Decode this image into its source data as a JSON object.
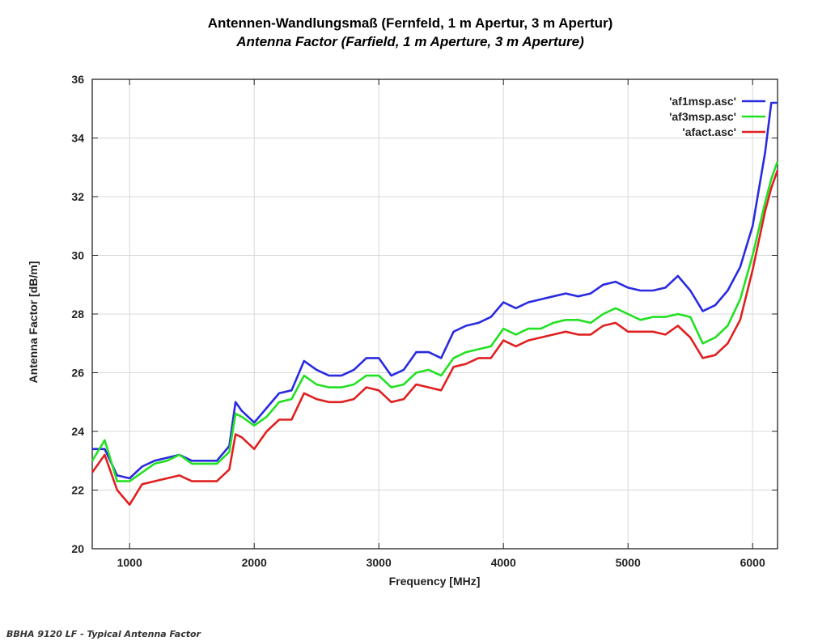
{
  "caption": "BBHA 9120 LF - Typical Antenna Factor",
  "chart_data": {
    "type": "line",
    "title": "Antennen-Wandlungsmaß (Fernfeld, 1 m Apertur, 3 m Apertur)",
    "subtitle": "Antenna Factor (Farfield, 1 m Aperture, 3 m Aperture)",
    "xlabel": "Frequency [MHz]",
    "ylabel": "Antenna Factor [dB/m]",
    "xlim": [
      700,
      6200
    ],
    "ylim": [
      20,
      36
    ],
    "xticks": [
      1000,
      2000,
      3000,
      4000,
      5000,
      6000
    ],
    "yticks": [
      20,
      22,
      24,
      26,
      28,
      30,
      32,
      34,
      36
    ],
    "grid": true,
    "legend_position": "top-right",
    "x": [
      700,
      800,
      900,
      1000,
      1100,
      1200,
      1300,
      1400,
      1500,
      1600,
      1700,
      1800,
      1850,
      1900,
      2000,
      2100,
      2200,
      2300,
      2400,
      2500,
      2600,
      2700,
      2800,
      2900,
      3000,
      3100,
      3200,
      3300,
      3400,
      3500,
      3600,
      3700,
      3800,
      3900,
      4000,
      4100,
      4200,
      4300,
      4400,
      4500,
      4600,
      4700,
      4800,
      4900,
      5000,
      5100,
      5200,
      5300,
      5400,
      5500,
      5600,
      5700,
      5800,
      5900,
      6000,
      6100,
      6150,
      6200
    ],
    "series": [
      {
        "name": "'af1msp.asc'",
        "color": "#2a2ae0",
        "values": [
          23.4,
          23.4,
          22.5,
          22.4,
          22.8,
          23.0,
          23.1,
          23.2,
          23.0,
          23.0,
          23.0,
          23.5,
          25.0,
          24.7,
          24.3,
          24.8,
          25.3,
          25.4,
          26.4,
          26.1,
          25.9,
          25.9,
          26.1,
          26.5,
          26.5,
          25.9,
          26.1,
          26.7,
          26.7,
          26.5,
          27.4,
          27.6,
          27.7,
          27.9,
          28.4,
          28.2,
          28.4,
          28.5,
          28.6,
          28.7,
          28.6,
          28.7,
          29.0,
          29.1,
          28.9,
          28.8,
          28.8,
          28.9,
          29.3,
          28.8,
          28.1,
          28.3,
          28.8,
          29.6,
          31.0,
          33.5,
          35.2,
          35.2
        ]
      },
      {
        "name": "'af3msp.asc'",
        "color": "#22e022",
        "values": [
          23.0,
          23.7,
          22.3,
          22.3,
          22.6,
          22.9,
          23.0,
          23.2,
          22.9,
          22.9,
          22.9,
          23.3,
          24.6,
          24.5,
          24.2,
          24.5,
          25.0,
          25.1,
          25.9,
          25.6,
          25.5,
          25.5,
          25.6,
          25.9,
          25.9,
          25.5,
          25.6,
          26.0,
          26.1,
          25.9,
          26.5,
          26.7,
          26.8,
          26.9,
          27.5,
          27.3,
          27.5,
          27.5,
          27.7,
          27.8,
          27.8,
          27.7,
          28.0,
          28.2,
          28.0,
          27.8,
          27.9,
          27.9,
          28.0,
          27.9,
          27.0,
          27.2,
          27.6,
          28.5,
          30.0,
          31.8,
          32.6,
          33.2
        ]
      },
      {
        "name": "'afact.asc'",
        "color": "#e02020",
        "values": [
          22.6,
          23.2,
          22.0,
          21.5,
          22.2,
          22.3,
          22.4,
          22.5,
          22.3,
          22.3,
          22.3,
          22.7,
          23.9,
          23.8,
          23.4,
          24.0,
          24.4,
          24.4,
          25.3,
          25.1,
          25.0,
          25.0,
          25.1,
          25.5,
          25.4,
          25.0,
          25.1,
          25.6,
          25.5,
          25.4,
          26.2,
          26.3,
          26.5,
          26.5,
          27.1,
          26.9,
          27.1,
          27.2,
          27.3,
          27.4,
          27.3,
          27.3,
          27.6,
          27.7,
          27.4,
          27.4,
          27.4,
          27.3,
          27.6,
          27.2,
          26.5,
          26.6,
          27.0,
          27.8,
          29.5,
          31.5,
          32.3,
          32.9
        ]
      }
    ]
  }
}
